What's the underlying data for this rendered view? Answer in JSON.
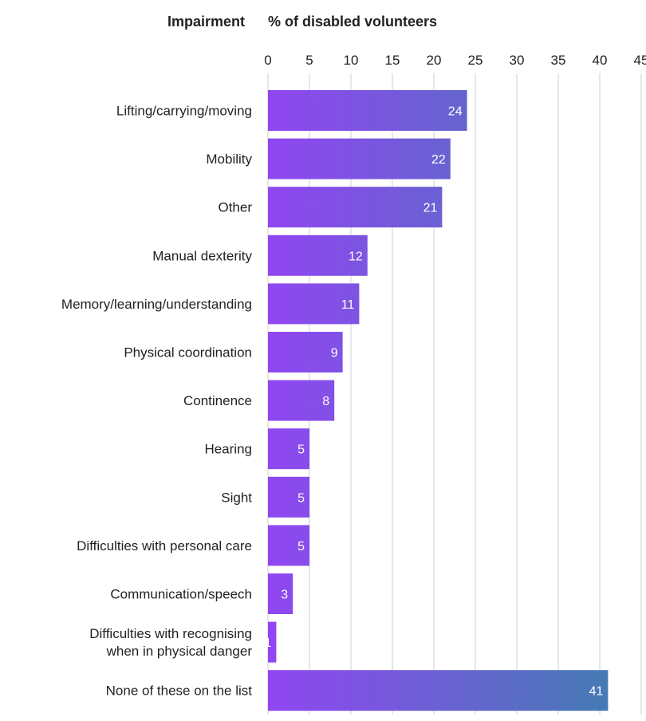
{
  "chart_data": {
    "type": "bar",
    "orientation": "horizontal",
    "category_header": "Impairment",
    "value_header": "% of disabled volunteers",
    "xlim": [
      0,
      45
    ],
    "xticks": [
      0,
      5,
      10,
      15,
      20,
      25,
      30,
      35,
      40,
      45
    ],
    "grid": true,
    "categories": [
      "Lifting/carrying/moving",
      "Mobility",
      "Other",
      "Manual dexterity",
      "Memory/learning/understanding",
      "Physical coordination",
      "Continence",
      "Hearing",
      "Sight",
      "Difficulties with personal care",
      "Communication/speech",
      "Difficulties with recognising when in physical danger",
      "None of these on the list"
    ],
    "category_lines": [
      [
        "Lifting/carrying/moving"
      ],
      [
        "Mobility"
      ],
      [
        "Other"
      ],
      [
        "Manual dexterity"
      ],
      [
        "Memory/learning/understanding"
      ],
      [
        "Physical coordination"
      ],
      [
        "Continence"
      ],
      [
        "Hearing"
      ],
      [
        "Sight"
      ],
      [
        "Difficulties with personal care"
      ],
      [
        "Communication/speech"
      ],
      [
        "Difficulties with recognising",
        "when in physical danger"
      ],
      [
        "None of these on the list"
      ]
    ],
    "values": [
      24,
      22,
      21,
      12,
      11,
      9,
      8,
      5,
      5,
      5,
      3,
      1,
      41
    ],
    "colors": {
      "start": "#9146f2",
      "end": "#3e7faf",
      "grid": "#cfcfcf"
    }
  }
}
